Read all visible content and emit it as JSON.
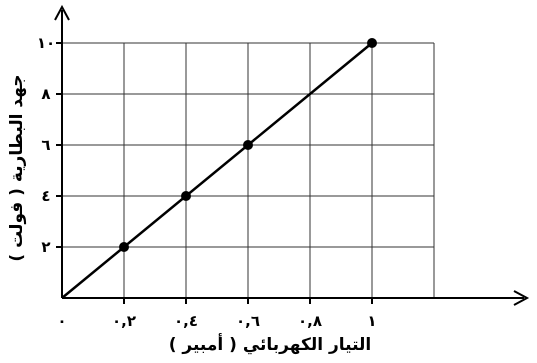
{
  "chart_data": {
    "type": "line",
    "xlabel": "التيار الكهربائي ( أمبير )",
    "ylabel": "جهد البطارية ( فولت )",
    "xlim": [
      0,
      1.4
    ],
    "ylim": [
      0,
      11
    ],
    "grid": true,
    "origin_label": "٠",
    "x_ticks": [
      {
        "value": 0.2,
        "label": "٠,٢"
      },
      {
        "value": 0.4,
        "label": "٠,٤"
      },
      {
        "value": 0.6,
        "label": "٠,٦"
      },
      {
        "value": 0.8,
        "label": "٠,٨"
      },
      {
        "value": 1.0,
        "label": "١"
      }
    ],
    "y_ticks": [
      {
        "value": 2,
        "label": "٢"
      },
      {
        "value": 4,
        "label": "٤"
      },
      {
        "value": 6,
        "label": "٦"
      },
      {
        "value": 8,
        "label": "٨"
      },
      {
        "value": 10,
        "label": "١٠"
      }
    ],
    "series": [
      {
        "x": [
          0,
          1.0
        ],
        "y": [
          0,
          10
        ],
        "points": [
          {
            "x": 0.2,
            "y": 2
          },
          {
            "x": 0.4,
            "y": 4
          },
          {
            "x": 0.6,
            "y": 6
          },
          {
            "x": 1.0,
            "y": 10
          }
        ]
      }
    ]
  }
}
